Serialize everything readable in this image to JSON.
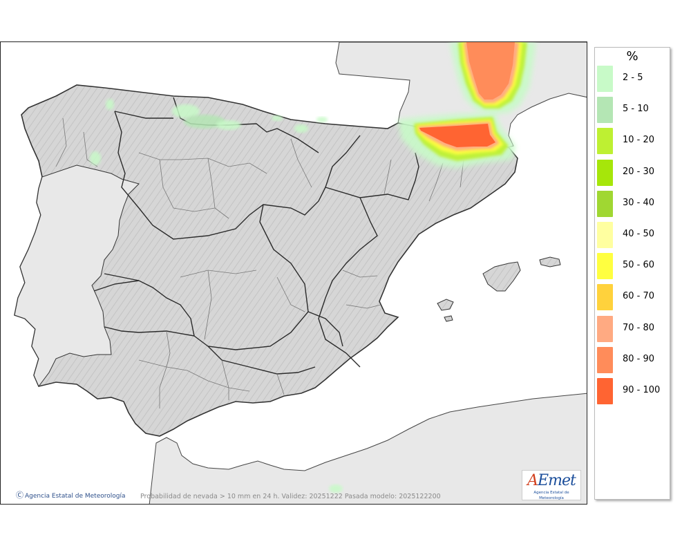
{
  "map": {
    "credit": "Agencia Estatal de Meteorología",
    "caption": "Probabilidad de nevada > 10 mm en 24 h. Validez: 20251222 Pasada modelo: 2025122200",
    "logo": {
      "text": "AEmet",
      "subtitle": "Agencia Estatal de Meteorología"
    },
    "colors": {
      "sea": "#ffffff",
      "land_other": "#e8e8e8",
      "land_iberia": "#d4d4d4",
      "borders": "#333333"
    }
  },
  "legend": {
    "title": "%",
    "items": [
      {
        "label": "2 - 5",
        "color": "#c8fac8"
      },
      {
        "label": "5 - 10",
        "color": "#b4e6b4"
      },
      {
        "label": "10 - 20",
        "color": "#bef032"
      },
      {
        "label": "20 - 30",
        "color": "#a6e60a"
      },
      {
        "label": "30 - 40",
        "color": "#a0d732"
      },
      {
        "label": "40 - 50",
        "color": "#ffffa0"
      },
      {
        "label": "50 - 60",
        "color": "#ffff40"
      },
      {
        "label": "60 - 70",
        "color": "#ffd23c"
      },
      {
        "label": "70 - 80",
        "color": "#ffaa82"
      },
      {
        "label": "80 - 90",
        "color": "#ff8c5a"
      },
      {
        "label": "90 - 100",
        "color": "#ff6432"
      }
    ]
  }
}
